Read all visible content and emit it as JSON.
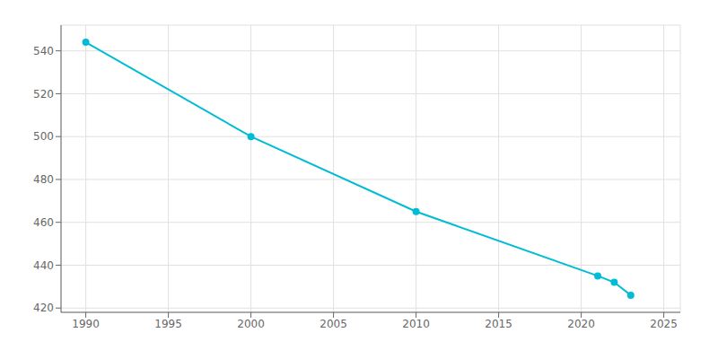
{
  "chart_data": {
    "type": "line",
    "x": [
      1990,
      2000,
      2010,
      2021,
      2022,
      2023
    ],
    "values": [
      544,
      500,
      465,
      435,
      432,
      426
    ],
    "color": "#00BCD4",
    "marker": "circle",
    "xlim": [
      1988.5,
      2026
    ],
    "ylim": [
      418,
      552
    ],
    "xticks": [
      1990,
      1995,
      2000,
      2005,
      2010,
      2015,
      2020,
      2025
    ],
    "yticks": [
      420,
      440,
      460,
      480,
      500,
      520,
      540
    ],
    "grid": true
  }
}
